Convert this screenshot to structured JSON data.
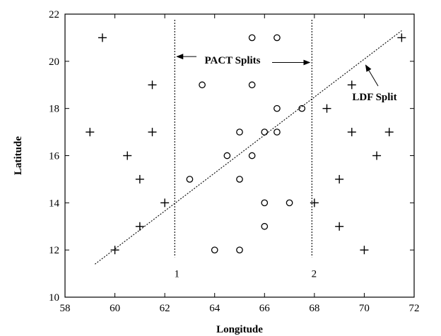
{
  "chart_data": {
    "type": "scatter",
    "title": "",
    "xlabel": "Longitude",
    "ylabel": "Latitude",
    "xlim": [
      58,
      72
    ],
    "ylim": [
      10,
      22
    ],
    "xticks": [
      58,
      60,
      62,
      64,
      66,
      68,
      70,
      72
    ],
    "yticks": [
      10,
      12,
      14,
      16,
      18,
      20,
      22
    ],
    "grid": false,
    "legend": "none",
    "series": [
      {
        "marker": "plus",
        "points": [
          [
            59.5,
            21
          ],
          [
            61.5,
            19
          ],
          [
            59,
            17
          ],
          [
            61.5,
            17
          ],
          [
            60.5,
            16
          ],
          [
            61,
            15
          ],
          [
            62,
            14
          ],
          [
            61,
            13
          ],
          [
            60,
            12
          ],
          [
            71.5,
            21
          ],
          [
            69.5,
            19
          ],
          [
            68.5,
            18
          ],
          [
            69.5,
            17
          ],
          [
            71,
            17
          ],
          [
            70.5,
            16
          ],
          [
            69,
            15
          ],
          [
            68,
            14
          ],
          [
            69,
            13
          ],
          [
            70,
            12
          ]
        ]
      },
      {
        "marker": "circle",
        "points": [
          [
            65.5,
            21
          ],
          [
            66.5,
            21
          ],
          [
            63.5,
            19
          ],
          [
            65.5,
            19
          ],
          [
            66.5,
            18
          ],
          [
            67.5,
            18
          ],
          [
            65,
            17
          ],
          [
            66,
            17
          ],
          [
            66.5,
            17
          ],
          [
            64.5,
            16
          ],
          [
            65.5,
            16
          ],
          [
            63,
            15
          ],
          [
            65,
            15
          ],
          [
            66,
            14
          ],
          [
            67,
            14
          ],
          [
            66,
            13
          ],
          [
            64,
            12
          ],
          [
            65,
            12
          ]
        ]
      }
    ],
    "vertical_splits": [
      {
        "x": 62.4,
        "label": "1"
      },
      {
        "x": 67.9,
        "label": "2"
      }
    ],
    "ldf_line": {
      "x": [
        59.2,
        71.5
      ],
      "y": [
        11.4,
        21.3
      ]
    },
    "annotations": {
      "pact": "PACT Splits",
      "ldf": "LDF Split"
    }
  }
}
